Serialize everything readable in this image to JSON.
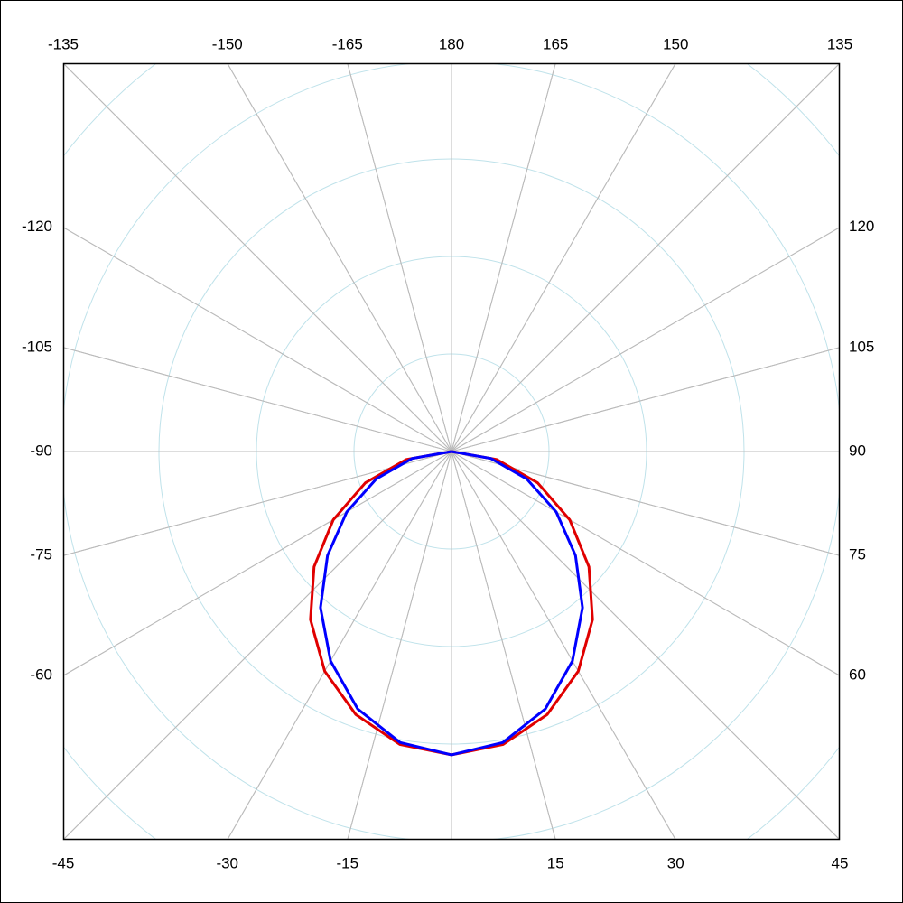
{
  "chart_data": {
    "type": "polar",
    "angle_ticks": [
      180,
      165,
      150,
      135,
      120,
      105,
      90,
      75,
      60,
      45,
      30,
      15,
      -15,
      -30,
      -45,
      -60,
      -75,
      -90,
      -105,
      -120,
      -135,
      -150,
      -165
    ],
    "rlim": [
      0,
      4
    ],
    "rticks": [
      1,
      2,
      3,
      4,
      5
    ],
    "angles": [
      -90,
      -80,
      -70,
      -60,
      -50,
      -40,
      -30,
      -20,
      -10,
      0,
      10,
      20,
      30,
      40,
      50,
      60,
      70,
      80,
      90
    ],
    "series": [
      {
        "color": "#e00000",
        "values": [
          0,
          0.47,
          0.94,
          1.4,
          1.84,
          2.25,
          2.6,
          2.87,
          3.05,
          3.11,
          3.05,
          2.87,
          2.6,
          2.25,
          1.84,
          1.4,
          0.94,
          0.47,
          0
        ]
      },
      {
        "color": "#0000ff",
        "values": [
          0,
          0.41,
          0.82,
          1.24,
          1.66,
          2.09,
          2.48,
          2.81,
          3.03,
          3.11,
          3.03,
          2.81,
          2.48,
          2.09,
          1.66,
          1.24,
          0.82,
          0.41,
          0
        ]
      }
    ]
  }
}
